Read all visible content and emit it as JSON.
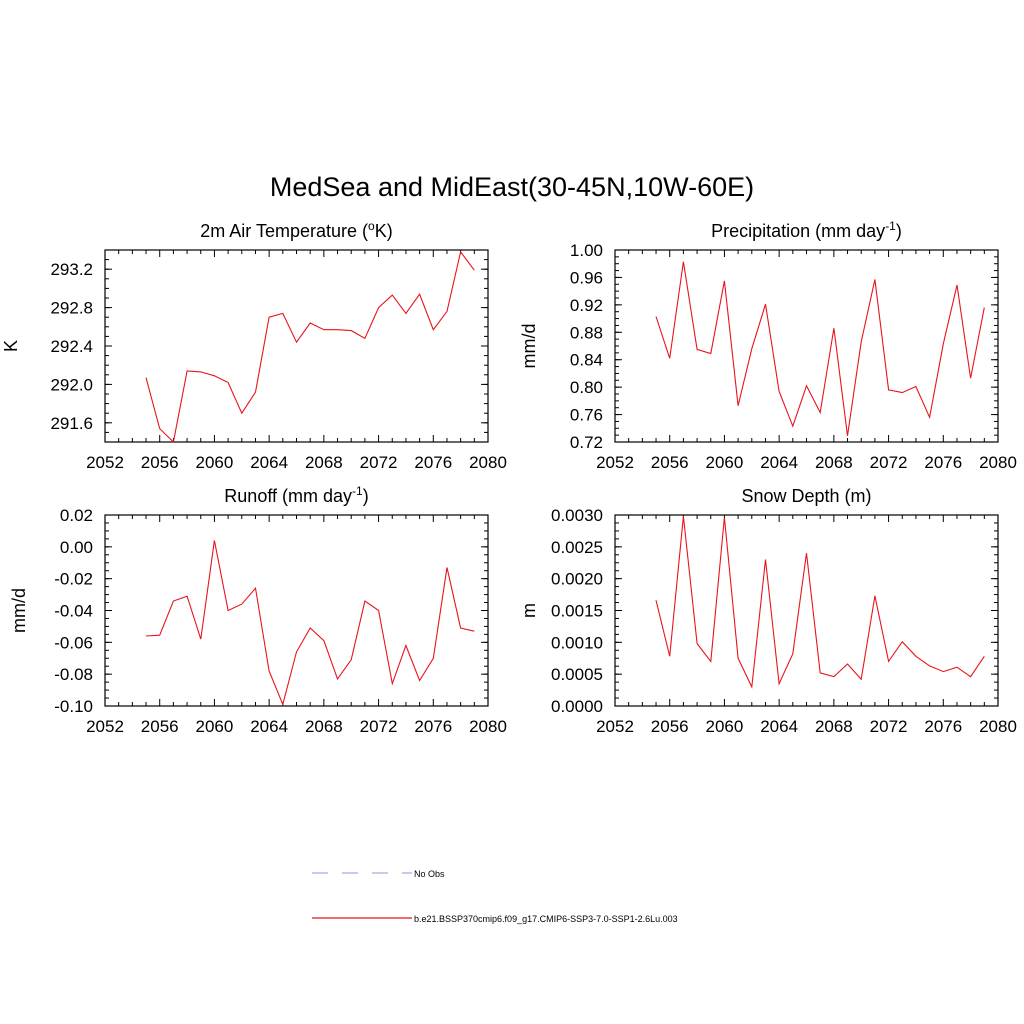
{
  "figure": {
    "title": "MedSea and MidEast(30-45N,10W-60E)"
  },
  "colors": {
    "series": "#e8141b",
    "obs": "#a8a8e6"
  },
  "legend": {
    "position": "bottom-center",
    "entries": [
      {
        "label": "No Obs",
        "style": "dashed",
        "color": "#a8a8e6"
      },
      {
        "label": "b.e21.BSSP370cmip6.f09_g17.CMIP6-SSP3-7.0-SSP1-2.6Lu.003",
        "style": "solid",
        "color": "#e8141b"
      }
    ]
  },
  "chart_data": [
    {
      "type": "line",
      "title": "2m Air Temperature (",
      "title_sup": "o",
      "title_after": "K)",
      "ylabel": "K",
      "xlabel": "",
      "xlim": [
        2052,
        2080
      ],
      "ylim": [
        291.4,
        293.4
      ],
      "xticks": [
        2052,
        2056,
        2060,
        2064,
        2068,
        2072,
        2076,
        2080
      ],
      "yticks": [
        291.6,
        292.0,
        292.4,
        292.8,
        293.2
      ],
      "ytick_labels": [
        "291.6",
        "292.0",
        "292.4",
        "292.8",
        "293.2"
      ],
      "grid": false,
      "x": [
        2055,
        2056,
        2057,
        2058,
        2059,
        2060,
        2061,
        2062,
        2063,
        2064,
        2065,
        2066,
        2067,
        2068,
        2069,
        2070,
        2071,
        2072,
        2073,
        2074,
        2075,
        2076,
        2077,
        2078,
        2079
      ],
      "series": [
        {
          "values": [
            292.07,
            291.54,
            291.4,
            292.14,
            292.13,
            292.09,
            292.02,
            291.7,
            291.92,
            292.7,
            292.74,
            292.44,
            292.64,
            292.57,
            292.57,
            292.56,
            292.48,
            292.8,
            292.93,
            292.74,
            292.94,
            292.57,
            292.76,
            293.38,
            293.19
          ]
        }
      ]
    },
    {
      "type": "line",
      "title": "Precipitation (mm day",
      "title_sup": "-1",
      "title_after": ")",
      "ylabel": "mm/d",
      "xlabel": "",
      "xlim": [
        2052,
        2080
      ],
      "ylim": [
        0.72,
        1.0
      ],
      "xticks": [
        2052,
        2056,
        2060,
        2064,
        2068,
        2072,
        2076,
        2080
      ],
      "yticks": [
        0.72,
        0.76,
        0.8,
        0.84,
        0.88,
        0.92,
        0.96,
        1.0
      ],
      "ytick_labels": [
        "0.72",
        "0.76",
        "0.80",
        "0.84",
        "0.88",
        "0.92",
        "0.96",
        "1.00"
      ],
      "grid": false,
      "x": [
        2055,
        2056,
        2057,
        2058,
        2059,
        2060,
        2061,
        2062,
        2063,
        2064,
        2065,
        2066,
        2067,
        2068,
        2069,
        2070,
        2071,
        2072,
        2073,
        2074,
        2075,
        2076,
        2077,
        2078,
        2079
      ],
      "series": [
        {
          "values": [
            0.903,
            0.842,
            0.983,
            0.855,
            0.849,
            0.955,
            0.773,
            0.856,
            0.921,
            0.794,
            0.743,
            0.802,
            0.763,
            0.886,
            0.729,
            0.866,
            0.957,
            0.796,
            0.792,
            0.801,
            0.756,
            0.863,
            0.949,
            0.813,
            0.916
          ]
        }
      ]
    },
    {
      "type": "line",
      "title": "Runoff (mm day",
      "title_sup": "-1",
      "title_after": ")",
      "ylabel": "mm/d",
      "xlabel": "",
      "xlim": [
        2052,
        2080
      ],
      "ylim": [
        -0.1,
        0.02
      ],
      "xticks": [
        2052,
        2056,
        2060,
        2064,
        2068,
        2072,
        2076,
        2080
      ],
      "yticks": [
        -0.1,
        -0.08,
        -0.06,
        -0.04,
        -0.02,
        0.0,
        0.02
      ],
      "ytick_labels": [
        "-0.10",
        "-0.08",
        "-0.06",
        "-0.04",
        "-0.02",
        "0.00",
        "0.02"
      ],
      "grid": false,
      "x": [
        2055,
        2056,
        2057,
        2058,
        2059,
        2060,
        2061,
        2062,
        2063,
        2064,
        2065,
        2066,
        2067,
        2068,
        2069,
        2070,
        2071,
        2072,
        2073,
        2074,
        2075,
        2076,
        2077,
        2078,
        2079
      ],
      "series": [
        {
          "values": [
            -0.056,
            -0.0555,
            -0.034,
            -0.031,
            -0.058,
            0.004,
            -0.04,
            -0.036,
            -0.026,
            -0.078,
            -0.099,
            -0.066,
            -0.051,
            -0.059,
            -0.083,
            -0.071,
            -0.034,
            -0.04,
            -0.086,
            -0.062,
            -0.084,
            -0.07,
            -0.013,
            -0.051,
            -0.053
          ]
        }
      ]
    },
    {
      "type": "line",
      "title": "Snow Depth (m)",
      "title_sup": "",
      "title_after": "",
      "ylabel": "m",
      "xlabel": "",
      "xlim": [
        2052,
        2080
      ],
      "ylim": [
        0.0,
        0.003
      ],
      "xticks": [
        2052,
        2056,
        2060,
        2064,
        2068,
        2072,
        2076,
        2080
      ],
      "yticks": [
        0.0,
        0.0005,
        0.001,
        0.0015,
        0.002,
        0.0025,
        0.003
      ],
      "ytick_labels": [
        "0.0000",
        "0.0005",
        "0.0010",
        "0.0015",
        "0.0020",
        "0.0025",
        "0.0030"
      ],
      "grid": false,
      "x": [
        2055,
        2056,
        2057,
        2058,
        2059,
        2060,
        2061,
        2062,
        2063,
        2064,
        2065,
        2066,
        2067,
        2068,
        2069,
        2070,
        2071,
        2072,
        2073,
        2074,
        2075,
        2076,
        2077,
        2078,
        2079
      ],
      "series": [
        {
          "values": [
            0.00166,
            0.00078,
            0.00298,
            0.00098,
            0.0007,
            0.00296,
            0.00075,
            0.0003,
            0.0023,
            0.00035,
            0.00082,
            0.0024,
            0.00052,
            0.00046,
            0.00066,
            0.00042,
            0.00173,
            0.0007,
            0.00101,
            0.00078,
            0.00063,
            0.00054,
            0.00061,
            0.00046,
            0.00078
          ]
        }
      ]
    }
  ]
}
